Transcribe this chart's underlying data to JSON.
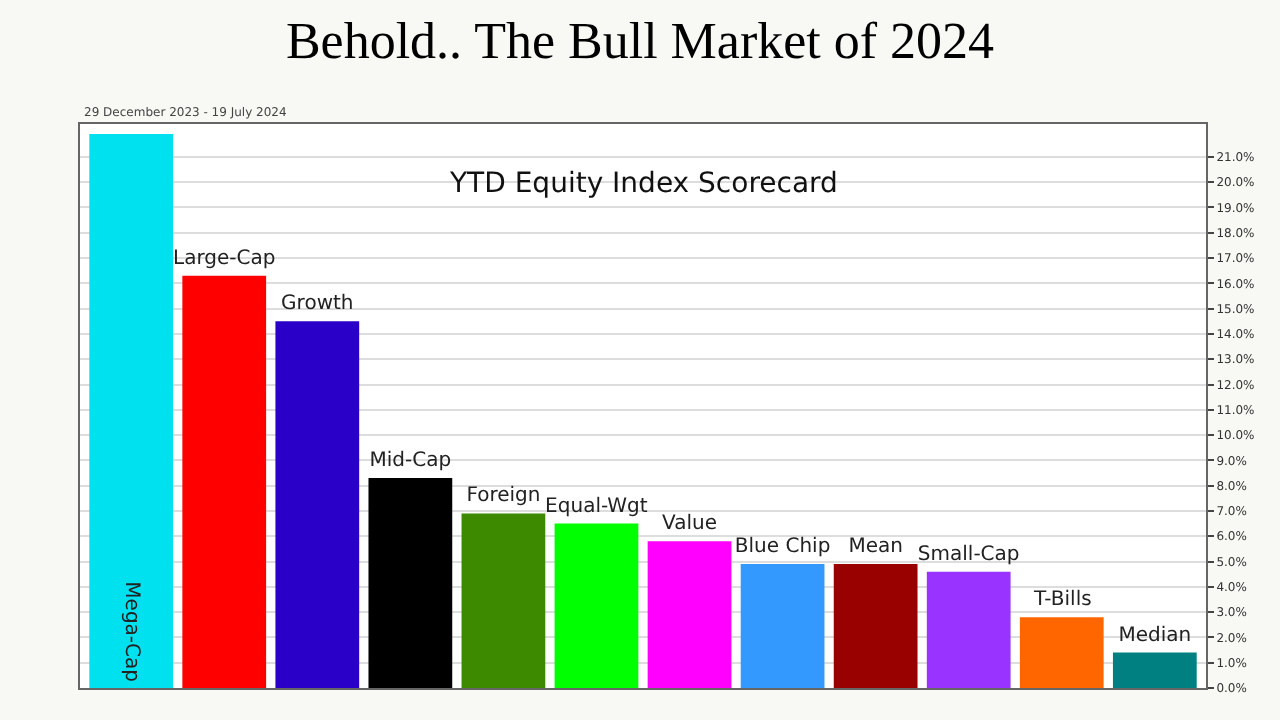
{
  "chart_data": {
    "type": "bar",
    "title": "Behold.. The Bull Market of 2024",
    "subtitle": "YTD Equity Index Scorecard",
    "annotations": [
      "29 December 2023 - 19 July 2024"
    ],
    "categories": [
      "Mega-Cap",
      "Large-Cap",
      "Growth",
      "Mid-Cap",
      "Foreign",
      "Equal-Wgt",
      "Value",
      "Blue Chip",
      "Mean",
      "Small-Cap",
      "T-Bills",
      "Median"
    ],
    "values": [
      21.9,
      16.3,
      14.5,
      8.3,
      6.9,
      6.5,
      5.8,
      4.9,
      4.9,
      4.6,
      2.8,
      1.4
    ],
    "colors": [
      "#00e1f0",
      "#ff0000",
      "#2a00c8",
      "#000000",
      "#3d8a00",
      "#00ff00",
      "#ff00ff",
      "#3399ff",
      "#990000",
      "#9933ff",
      "#ff6600",
      "#008080"
    ],
    "ylim": [
      0,
      22.3
    ],
    "yticks": [
      {
        "value": 0,
        "label": "0.0%"
      },
      {
        "value": 1,
        "label": "1.0%"
      },
      {
        "value": 2,
        "label": "2.0%"
      },
      {
        "value": 3,
        "label": "3.0%"
      },
      {
        "value": 4,
        "label": "4.0%"
      },
      {
        "value": 5,
        "label": "5.0%"
      },
      {
        "value": 6,
        "label": "6.0%"
      },
      {
        "value": 7,
        "label": "7.0%"
      },
      {
        "value": 8,
        "label": "8.0%"
      },
      {
        "value": 9,
        "label": "9.0%"
      },
      {
        "value": 10,
        "label": "10.0%"
      },
      {
        "value": 11,
        "label": "11.0%"
      },
      {
        "value": 12,
        "label": "12.0%"
      },
      {
        "value": 13,
        "label": "13.0%"
      },
      {
        "value": 14,
        "label": "14.0%"
      },
      {
        "value": 15,
        "label": "15.0%"
      },
      {
        "value": 16,
        "label": "16.0%"
      },
      {
        "value": 17,
        "label": "17.0%"
      },
      {
        "value": 18,
        "label": "18.0%"
      },
      {
        "value": 19,
        "label": "19.0%"
      },
      {
        "value": 20,
        "label": "20.0%"
      },
      {
        "value": 21,
        "label": "21.0%"
      }
    ],
    "grid": "y",
    "tick_labels": "y"
  }
}
